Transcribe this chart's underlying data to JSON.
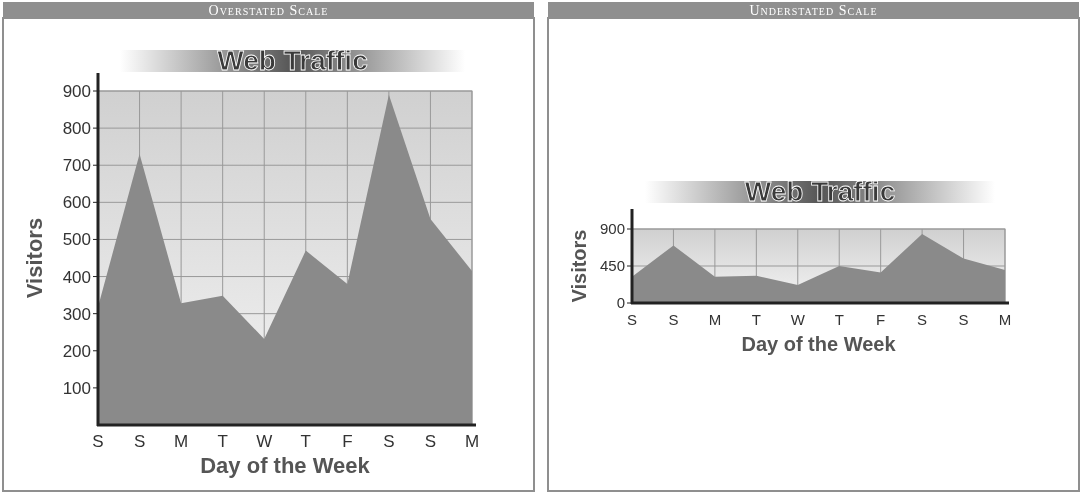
{
  "chart_data": [
    {
      "type": "area",
      "title": "Web Traffic",
      "xlabel": "Day of the Week",
      "ylabel": "Visitors",
      "annotations": [
        "Overstated Scale"
      ],
      "categories": [
        "S",
        "S",
        "M",
        "T",
        "W",
        "T",
        "F",
        "S",
        "S",
        "M"
      ],
      "series": [
        {
          "color": "#8a8a8a",
          "values": [
            318,
            730,
            328,
            348,
            232,
            470,
            380,
            890,
            555,
            415
          ]
        }
      ],
      "ylim": [
        0,
        900
      ],
      "yticks": [
        100,
        200,
        300,
        400,
        500,
        600,
        700,
        800,
        900
      ],
      "grid": true
    },
    {
      "type": "area",
      "title": "Web Traffic",
      "xlabel": "Day of the Week",
      "ylabel": "Visitors",
      "annotations": [
        "Understated Scale"
      ],
      "categories": [
        "S",
        "S",
        "M",
        "T",
        "W",
        "T",
        "F",
        "S",
        "S",
        "M"
      ],
      "series": [
        {
          "color": "#8a8a8a",
          "values": [
            320,
            700,
            320,
            330,
            220,
            450,
            370,
            840,
            540,
            400
          ]
        }
      ],
      "ylim": [
        0,
        900
      ],
      "yticks": [
        0,
        450,
        900
      ],
      "grid": true
    }
  ]
}
